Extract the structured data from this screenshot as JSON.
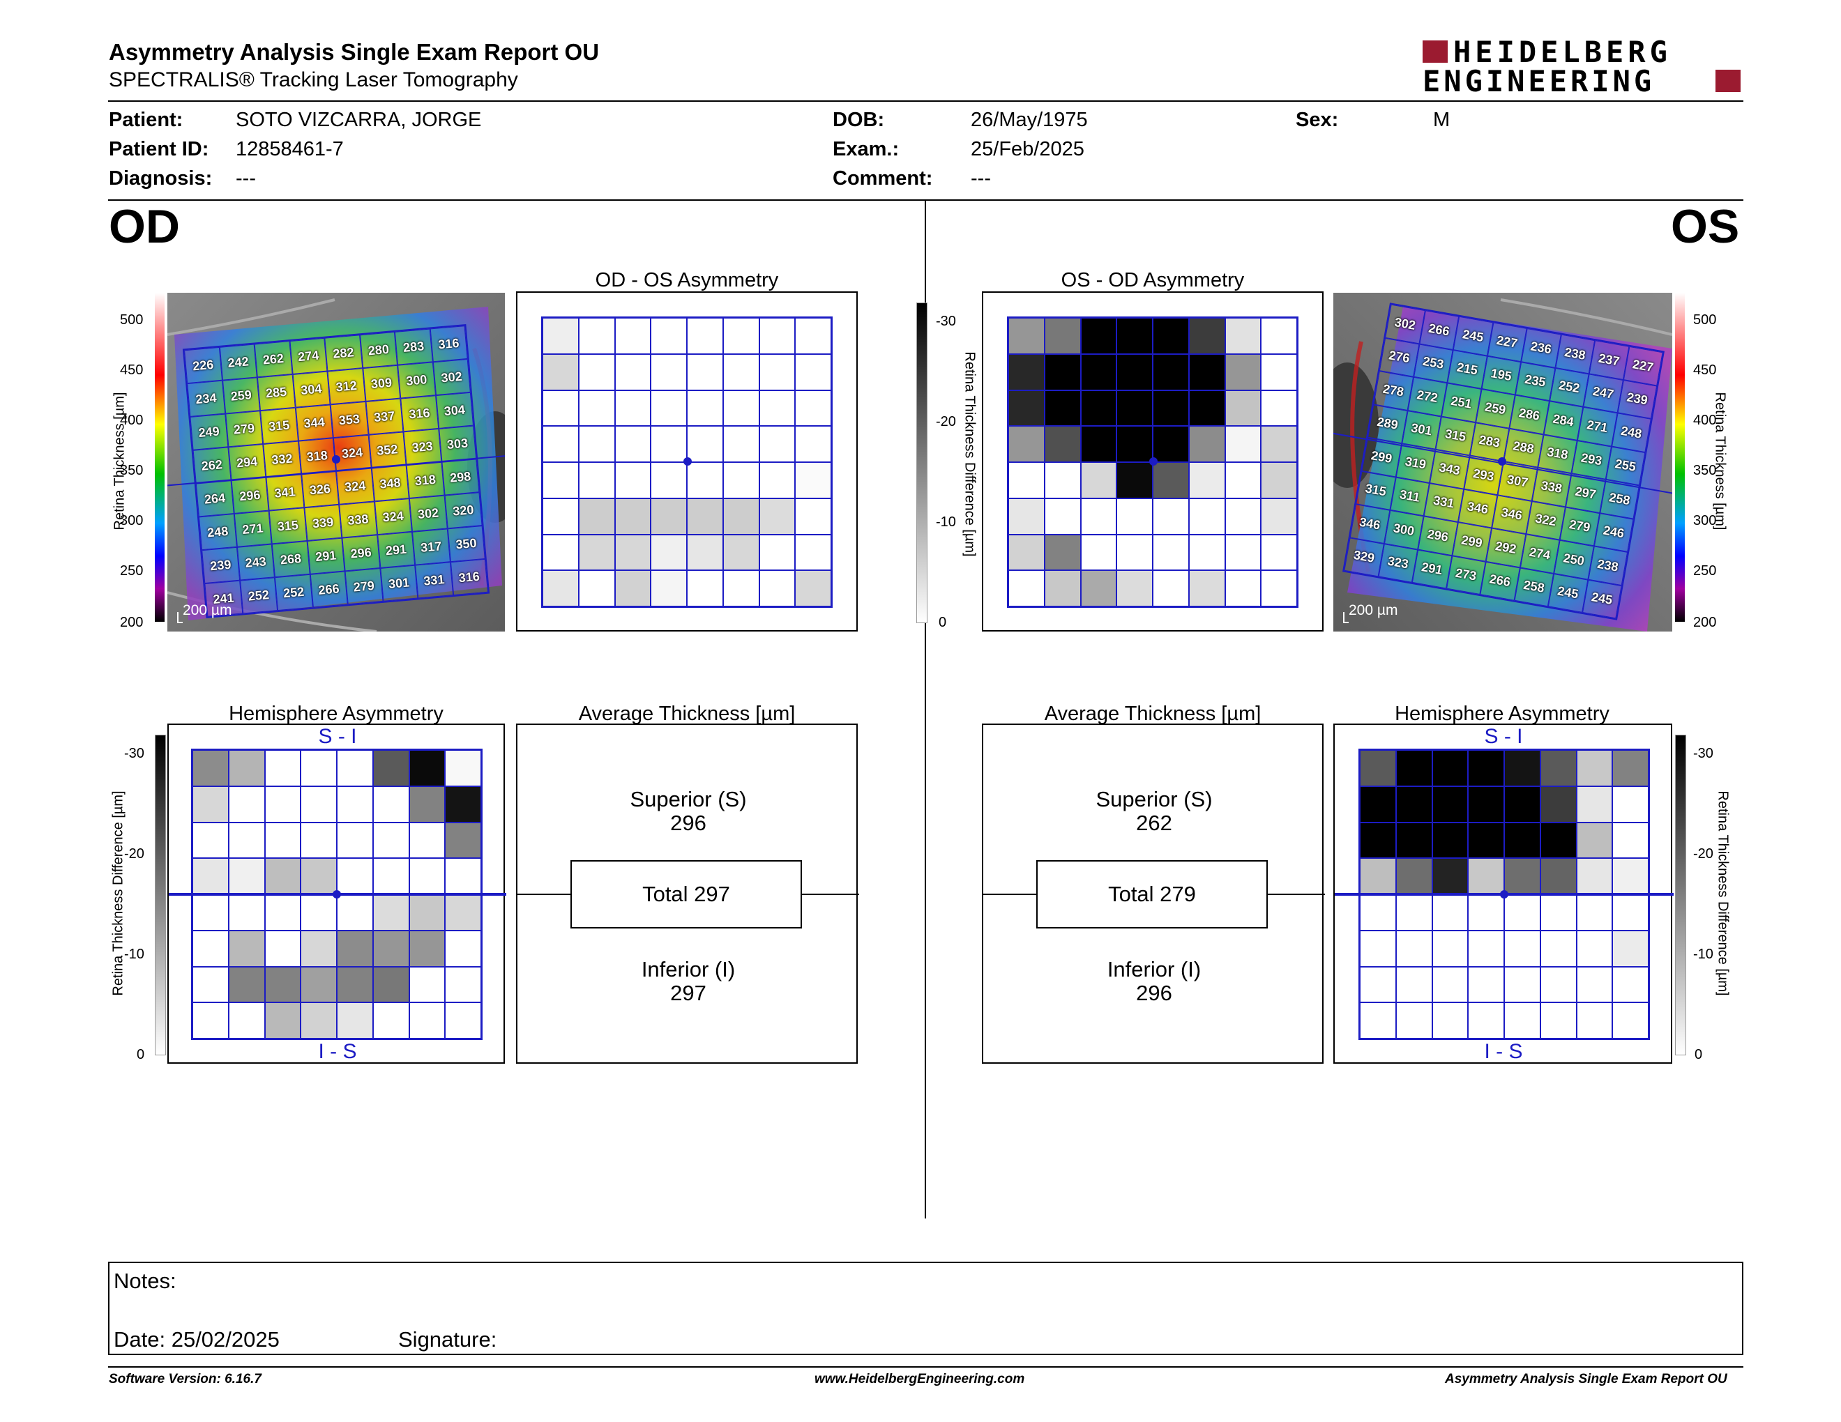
{
  "header": {
    "title": "Asymmetry Analysis Single Exam Report OU",
    "subtitle": "SPECTRALIS® Tracking Laser Tomography",
    "logo_line1": "HEIDELBERG",
    "logo_line2": "ENGINEERING"
  },
  "patient": {
    "patient_label": "Patient:",
    "patient_value": "SOTO VIZCARRA, JORGE",
    "id_label": "Patient ID:",
    "id_value": "12858461-7",
    "diag_label": "Diagnosis:",
    "diag_value": "---",
    "dob_label": "DOB:",
    "dob_value": "26/May/1975",
    "exam_label": "Exam.:",
    "exam_value": "25/Feb/2025",
    "comment_label": "Comment:",
    "comment_value": "---",
    "sex_label": "Sex:",
    "sex_value": "M"
  },
  "od": {
    "eye_label": "OD",
    "asym_title": "OD - OS Asymmetry",
    "hemi_title": "Hemisphere Asymmetry",
    "avg_title": "Average Thickness [µm]",
    "superior_label": "Superior (S)",
    "superior_value": "296",
    "total": "Total 297",
    "inferior_label": "Inferior (I)",
    "inferior_value": "297",
    "hemi_top": "S - I",
    "hemi_bottom": "I - S",
    "scale": "200 µm",
    "thickness_grid": [
      [
        "226",
        "242",
        "262",
        "274",
        "282",
        "280",
        "283",
        "316"
      ],
      [
        "234",
        "259",
        "285",
        "304",
        "312",
        "309",
        "300",
        "302"
      ],
      [
        "249",
        "279",
        "315",
        "344",
        "353",
        "337",
        "316",
        "304"
      ],
      [
        "262",
        "294",
        "332",
        "318",
        "324",
        "352",
        "323",
        "303"
      ],
      [
        "264",
        "296",
        "341",
        "326",
        "324",
        "348",
        "318",
        "298"
      ],
      [
        "248",
        "271",
        "315",
        "339",
        "338",
        "324",
        "302",
        "320"
      ],
      [
        "239",
        "243",
        "268",
        "291",
        "296",
        "291",
        "317",
        "350"
      ],
      [
        "241",
        "252",
        "252",
        "266",
        "279",
        "301",
        "331",
        "316"
      ]
    ],
    "asym_shades": [
      [
        238,
        255,
        255,
        255,
        255,
        255,
        255,
        255
      ],
      [
        215,
        255,
        255,
        255,
        255,
        255,
        255,
        255
      ],
      [
        255,
        255,
        255,
        255,
        255,
        255,
        255,
        255
      ],
      [
        255,
        255,
        255,
        255,
        255,
        255,
        255,
        255
      ],
      [
        255,
        255,
        255,
        255,
        255,
        255,
        255,
        250
      ],
      [
        255,
        205,
        205,
        205,
        205,
        205,
        220,
        255
      ],
      [
        255,
        215,
        215,
        240,
        230,
        215,
        255,
        255
      ],
      [
        230,
        255,
        210,
        245,
        255,
        255,
        255,
        215
      ]
    ],
    "hemi_shades": [
      [
        140,
        180,
        255,
        255,
        255,
        90,
        10,
        248
      ],
      [
        215,
        255,
        255,
        255,
        255,
        255,
        130,
        20
      ],
      [
        255,
        255,
        255,
        255,
        255,
        255,
        255,
        130
      ],
      [
        230,
        240,
        190,
        200,
        255,
        255,
        255,
        255
      ],
      [
        255,
        255,
        255,
        255,
        255,
        220,
        200,
        215
      ],
      [
        255,
        185,
        255,
        215,
        140,
        150,
        150,
        255
      ],
      [
        255,
        130,
        130,
        160,
        130,
        120,
        255,
        255
      ],
      [
        255,
        255,
        185,
        210,
        230,
        255,
        255,
        255
      ]
    ]
  },
  "os": {
    "eye_label": "OS",
    "asym_title": "OS - OD Asymmetry",
    "hemi_title": "Hemisphere Asymmetry",
    "avg_title": "Average Thickness [µm]",
    "superior_label": "Superior (S)",
    "superior_value": "262",
    "total": "Total 279",
    "inferior_label": "Inferior (I)",
    "inferior_value": "296",
    "hemi_top": "S - I",
    "hemi_bottom": "I - S",
    "scale": "200 µm",
    "thickness_grid": [
      [
        "302",
        "266",
        "245",
        "227",
        "236",
        "238",
        "237",
        "227"
      ],
      [
        "276",
        "253",
        "215",
        "195",
        "235",
        "252",
        "247",
        "239"
      ],
      [
        "278",
        "272",
        "251",
        "259",
        "286",
        "284",
        "271",
        "248"
      ],
      [
        "289",
        "301",
        "315",
        "283",
        "288",
        "318",
        "293",
        "255"
      ],
      [
        "299",
        "319",
        "343",
        "293",
        "307",
        "338",
        "297",
        "258"
      ],
      [
        "315",
        "311",
        "331",
        "346",
        "346",
        "322",
        "279",
        "246"
      ],
      [
        "346",
        "300",
        "296",
        "299",
        "292",
        "274",
        "250",
        "238"
      ],
      [
        "329",
        "323",
        "291",
        "273",
        "266",
        "258",
        "245",
        "245"
      ]
    ],
    "asym_shades": [
      [
        150,
        120,
        0,
        0,
        0,
        60,
        225,
        255
      ],
      [
        40,
        0,
        0,
        0,
        0,
        0,
        150,
        255
      ],
      [
        40,
        0,
        0,
        0,
        0,
        0,
        195,
        255
      ],
      [
        150,
        80,
        0,
        0,
        0,
        140,
        245,
        210
      ],
      [
        255,
        255,
        215,
        10,
        90,
        235,
        255,
        210
      ],
      [
        230,
        255,
        255,
        255,
        255,
        255,
        255,
        230
      ],
      [
        210,
        130,
        255,
        255,
        255,
        255,
        255,
        255
      ],
      [
        255,
        200,
        170,
        220,
        255,
        220,
        255,
        255
      ]
    ],
    "hemi_shades": [
      [
        90,
        0,
        0,
        0,
        20,
        90,
        200,
        130
      ],
      [
        0,
        0,
        0,
        0,
        0,
        60,
        230,
        255
      ],
      [
        0,
        0,
        0,
        0,
        0,
        0,
        190,
        255
      ],
      [
        190,
        110,
        35,
        200,
        110,
        100,
        230,
        240
      ],
      [
        255,
        255,
        255,
        255,
        255,
        255,
        255,
        255
      ],
      [
        255,
        255,
        255,
        255,
        255,
        255,
        255,
        235
      ],
      [
        255,
        255,
        255,
        255,
        255,
        255,
        255,
        255
      ],
      [
        255,
        255,
        255,
        255,
        255,
        255,
        255,
        255
      ]
    ]
  },
  "colorbars": {
    "thickness_label": "Retina Thickness [µm]",
    "thickness_ticks": [
      "500",
      "450",
      "400",
      "350",
      "300",
      "250",
      "200"
    ],
    "diff_label": "Retina Thickness Difference [µm]",
    "diff_ticks": [
      "-30",
      "-20",
      "-10",
      "0"
    ]
  },
  "notes": {
    "notes_label": "Notes:",
    "date_label": "Date: 25/02/2025",
    "signature_label": "Signature:"
  },
  "footer": {
    "software": "Software Version: 6.16.7",
    "website": "www.HeidelbergEngineering.com",
    "report": "Asymmetry Analysis Single Exam Report OU"
  },
  "colors": {
    "grid_blue": "#1c1cc4",
    "logo_red": "#9b1b30"
  }
}
